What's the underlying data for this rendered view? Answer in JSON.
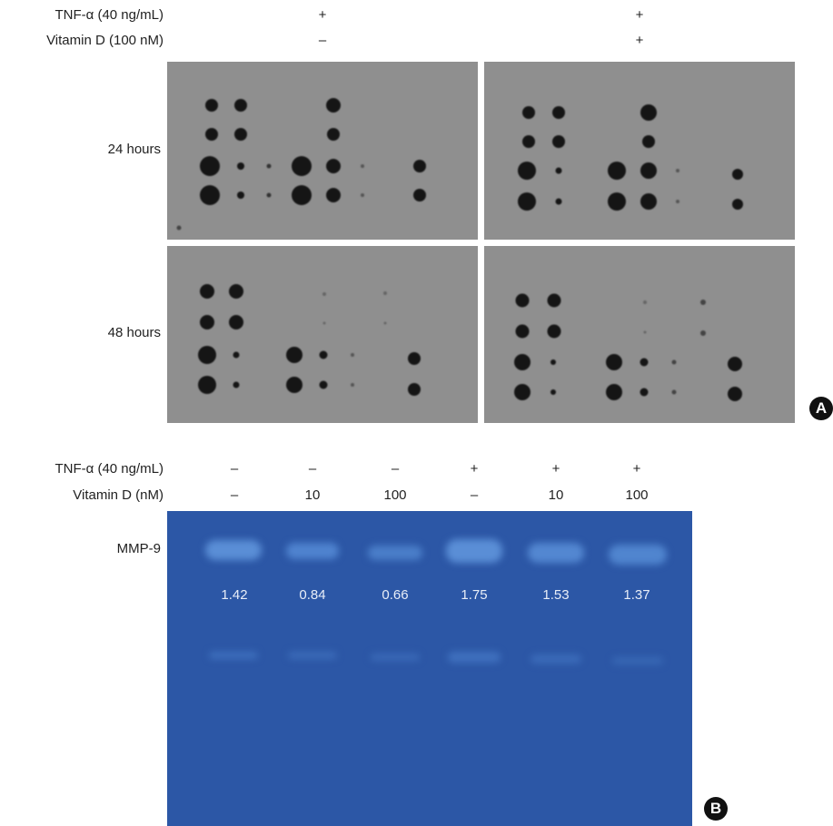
{
  "panel_a": {
    "row_labels": [
      "TNF-α (40 ng/mL)",
      "Vitamin D (100 nM)"
    ],
    "col1": {
      "tnf": "+",
      "vitd": "–"
    },
    "col2": {
      "tnf": "+",
      "vitd": "+"
    },
    "time_labels": [
      "24 hours",
      "48 hours"
    ],
    "badge": "A"
  },
  "panel_b": {
    "row_labels": [
      "TNF-α (40 ng/mL)",
      "Vitamin D (nM)"
    ],
    "lanes": [
      {
        "tnf": "–",
        "vitd": "–",
        "value": "1.42"
      },
      {
        "tnf": "–",
        "vitd": "10",
        "value": "0.84"
      },
      {
        "tnf": "–",
        "vitd": "100",
        "value": "0.66"
      },
      {
        "tnf": "+",
        "vitd": "–",
        "value": "1.75"
      },
      {
        "tnf": "+",
        "vitd": "10",
        "value": "1.53"
      },
      {
        "tnf": "+",
        "vitd": "100",
        "value": "1.37"
      }
    ],
    "band_label": "MMP-9",
    "badge": "B"
  },
  "colors": {
    "blot_bg": "#8f8f8f",
    "gel_bg": "#2c57a6",
    "band": "#4f83cf"
  }
}
